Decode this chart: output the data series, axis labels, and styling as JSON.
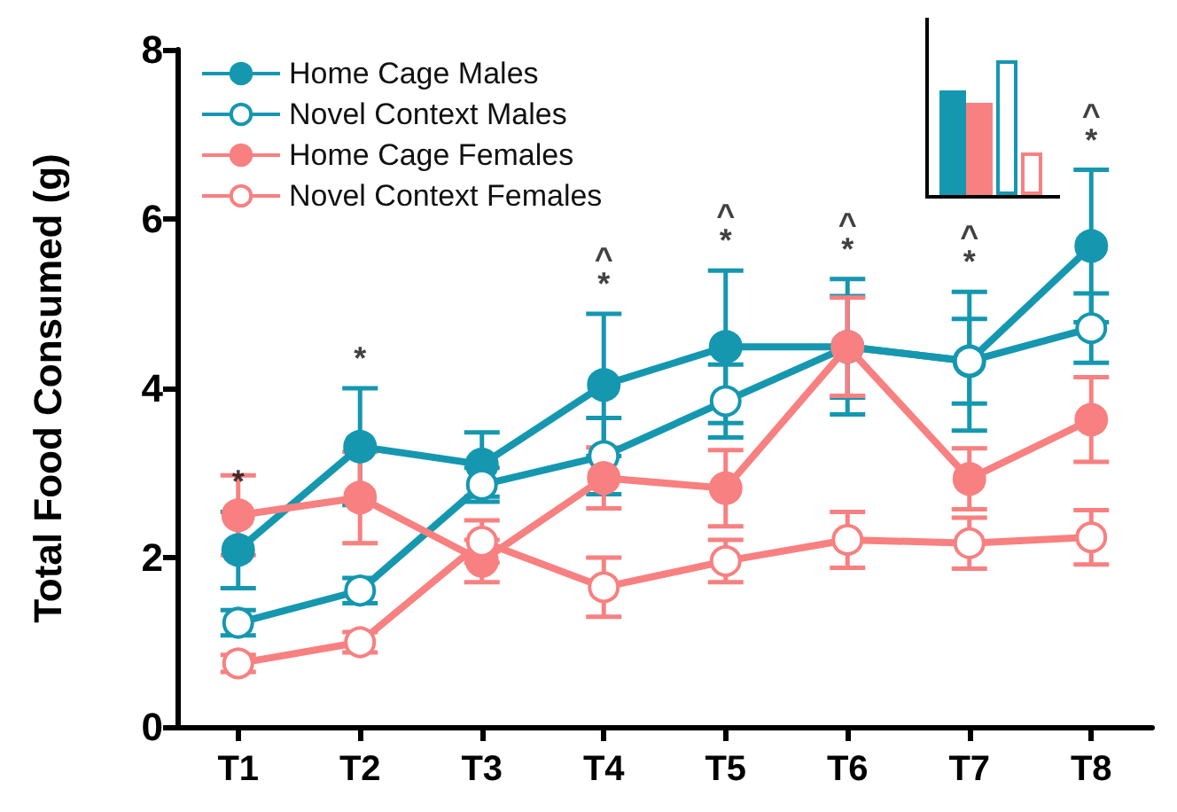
{
  "chart_data": {
    "type": "line",
    "ylabel": "Total Food Consumed (g)",
    "categories": [
      "T1",
      "T2",
      "T3",
      "T4",
      "T5",
      "T6",
      "T7",
      "T8"
    ],
    "ylim": [
      0,
      8
    ],
    "yticks": [
      0,
      2,
      4,
      6,
      8
    ],
    "grid": false,
    "legend": "top left",
    "line_style": "solid",
    "series": [
      {
        "name": "Home Cage Males",
        "color": "#1597b0",
        "marker": "circle",
        "values": [
          2.09,
          3.31,
          3.1,
          4.04,
          4.49,
          4.49,
          4.32,
          5.68
        ],
        "value_labels": [
          "*",
          "*",
          null,
          "^\n*",
          "^\n*",
          "^\n*",
          "^\n*",
          "^\n*"
        ],
        "errors": [
          0.45,
          0.69,
          0.38,
          0.84,
          0.9,
          0.8,
          0.82,
          0.9
        ]
      },
      {
        "name": "Novel Context Males",
        "color": "#1597b0",
        "marker": "open circle",
        "values": [
          1.23,
          1.61,
          2.86,
          3.2,
          3.85,
          4.49,
          4.32,
          4.71
        ],
        "errors": [
          0.15,
          0.15,
          0.2,
          0.45,
          0.43,
          0.6,
          0.5,
          0.41
        ]
      },
      {
        "name": "Home Cage Females",
        "color": "#f88080",
        "marker": "circle",
        "values": [
          2.5,
          2.71,
          1.96,
          2.94,
          2.82,
          4.49,
          2.93,
          3.63
        ],
        "errors": [
          0.47,
          0.54,
          0.25,
          0.36,
          0.45,
          0.58,
          0.36,
          0.5
        ]
      },
      {
        "name": "Novel Context Females",
        "color": "#f88080",
        "marker": "open circle",
        "values": [
          0.75,
          1.0,
          2.19,
          1.65,
          1.96,
          2.21,
          2.17,
          2.24
        ],
        "errors": [
          0.1,
          0.12,
          0.25,
          0.35,
          0.25,
          0.33,
          0.3,
          0.32
        ]
      }
    ]
  }
}
